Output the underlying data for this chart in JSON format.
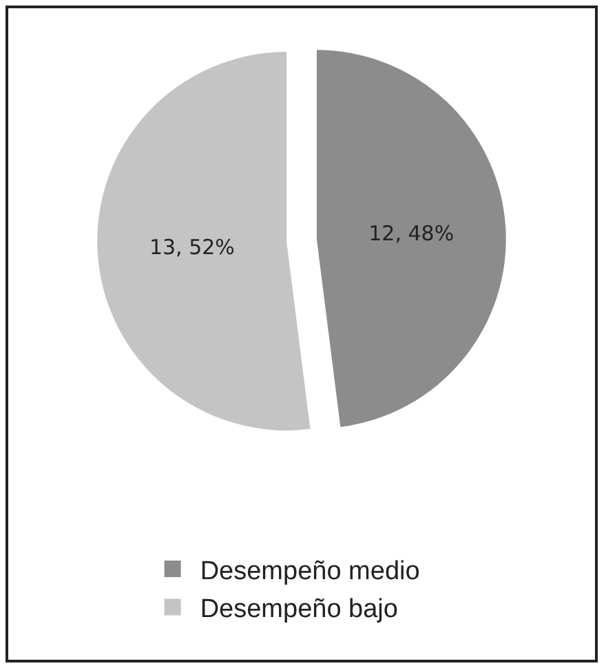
{
  "chart_data": {
    "type": "pie",
    "categories": [
      "Desempeño medio",
      "Desempeño bajo"
    ],
    "values": [
      12,
      13
    ],
    "colors": [
      "#8c8c8c",
      "#c4c4c4"
    ],
    "value_labels": [
      "12, 48%",
      "13, 52%"
    ],
    "legend": "bottom"
  }
}
